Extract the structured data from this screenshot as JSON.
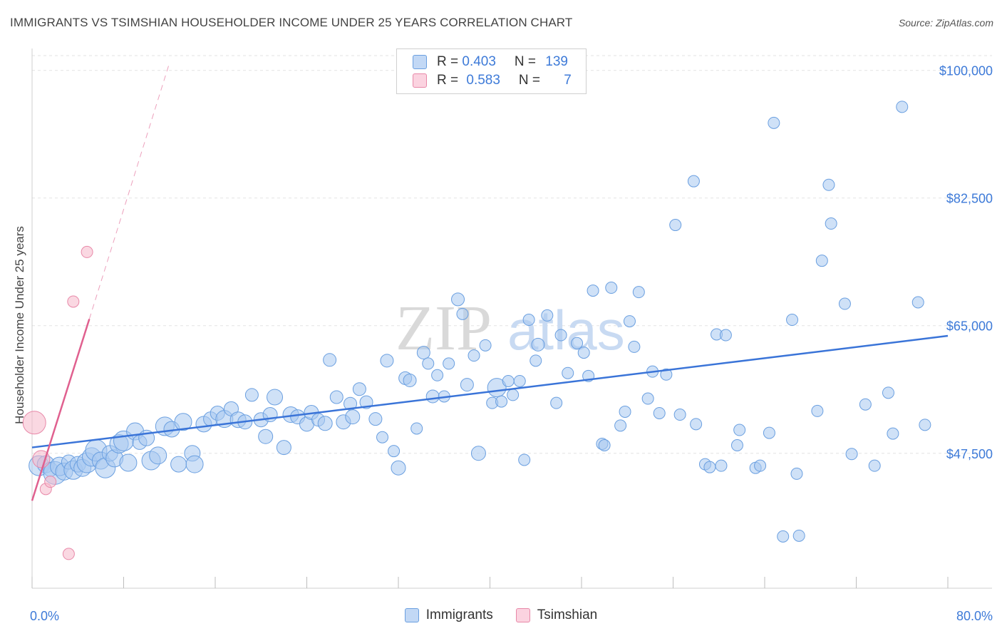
{
  "header": {
    "title": "IMMIGRANTS VS TSIMSHIAN HOUSEHOLDER INCOME UNDER 25 YEARS CORRELATION CHART",
    "source": "Source: ZipAtlas.com"
  },
  "watermark": {
    "zip": "ZIP",
    "atlas": "atlas"
  },
  "legend_top": {
    "rows": [
      {
        "r_label": "R = ",
        "r_value": "0.403",
        "n_label": "N = ",
        "n_value": "139",
        "color": "#a8c8f0"
      },
      {
        "r_label": "R = ",
        "r_value": "0.583",
        "n_label": "N = ",
        "n_value": "7",
        "color": "#f5b8cb"
      }
    ]
  },
  "legend_bottom": {
    "items": [
      {
        "label": "Immigrants",
        "color": "#a8c8f0"
      },
      {
        "label": "Tsimshian",
        "color": "#f5b8cb"
      }
    ]
  },
  "chart_data": {
    "type": "scatter",
    "ylabel": "Householder Income Under 25 years",
    "xlim": [
      0,
      80
    ],
    "ylim": [
      29000,
      103000
    ],
    "x_tick_labels": [
      {
        "value": 0,
        "label": "0.0%"
      },
      {
        "value": 80,
        "label": "80.0%"
      }
    ],
    "y_ticks": [
      {
        "value": 47500,
        "label": "$47,500"
      },
      {
        "value": 65000,
        "label": "$65,000"
      },
      {
        "value": 82500,
        "label": "$82,500"
      },
      {
        "value": 100000,
        "label": "$100,000"
      }
    ],
    "grid": true,
    "series": [
      {
        "name": "Immigrants",
        "color": "#a8c8f0",
        "stroke": "#6a9fe0",
        "trend": {
          "x0": 0,
          "y0": 48300,
          "x1": 80,
          "y1": 63600,
          "color": "#3a74d8"
        },
        "points": [
          [
            0.6,
            45800,
            14
          ],
          [
            1.2,
            46000,
            12
          ],
          [
            1.6,
            45300,
            10
          ],
          [
            2.0,
            44800,
            16
          ],
          [
            2.4,
            45700,
            13
          ],
          [
            2.8,
            45000,
            12
          ],
          [
            3.2,
            46300,
            10
          ],
          [
            3.6,
            45200,
            13
          ],
          [
            4.0,
            46000,
            11
          ],
          [
            4.4,
            45500,
            12
          ],
          [
            4.8,
            46200,
            14
          ],
          [
            5.2,
            47000,
            13
          ],
          [
            5.6,
            47900,
            15
          ],
          [
            6.0,
            46500,
            12
          ],
          [
            6.4,
            45500,
            14
          ],
          [
            6.8,
            47500,
            11
          ],
          [
            7.2,
            46800,
            12
          ],
          [
            7.6,
            48800,
            13
          ],
          [
            8.0,
            49200,
            14
          ],
          [
            8.4,
            46200,
            12
          ],
          [
            9.0,
            50500,
            12
          ],
          [
            9.4,
            49000,
            10
          ],
          [
            10.0,
            49600,
            11
          ],
          [
            10.4,
            46500,
            13
          ],
          [
            11.0,
            47200,
            12
          ],
          [
            11.6,
            51200,
            13
          ],
          [
            12.2,
            50800,
            11
          ],
          [
            12.8,
            46000,
            11
          ],
          [
            13.2,
            51800,
            12
          ],
          [
            14.0,
            47500,
            11
          ],
          [
            14.2,
            46000,
            12
          ],
          [
            15.0,
            51500,
            11
          ],
          [
            15.6,
            52200,
            10
          ],
          [
            16.2,
            53000,
            10
          ],
          [
            16.8,
            52200,
            12
          ],
          [
            17.4,
            53600,
            10
          ],
          [
            18.0,
            52100,
            11
          ],
          [
            18.6,
            51800,
            10
          ],
          [
            19.2,
            55500,
            9
          ],
          [
            20.0,
            52100,
            10
          ],
          [
            20.4,
            49800,
            10
          ],
          [
            20.8,
            52800,
            10
          ],
          [
            21.2,
            55200,
            11
          ],
          [
            22.0,
            48300,
            10
          ],
          [
            22.6,
            52800,
            11
          ],
          [
            23.2,
            52500,
            10
          ],
          [
            24.0,
            51500,
            10
          ],
          [
            24.4,
            53100,
            10
          ],
          [
            25.0,
            52100,
            9
          ],
          [
            25.6,
            51600,
            10
          ],
          [
            26.0,
            60300,
            9
          ],
          [
            26.6,
            55200,
            9
          ],
          [
            27.2,
            51800,
            10
          ],
          [
            27.8,
            54300,
            9
          ],
          [
            28.0,
            52500,
            10
          ],
          [
            28.6,
            56300,
            9
          ],
          [
            29.2,
            54500,
            9
          ],
          [
            30.0,
            52200,
            9
          ],
          [
            30.6,
            49700,
            8
          ],
          [
            31.0,
            60200,
            9
          ],
          [
            31.6,
            47800,
            8
          ],
          [
            32.0,
            45500,
            10
          ],
          [
            32.6,
            57800,
            9
          ],
          [
            33.0,
            57500,
            9
          ],
          [
            33.6,
            50900,
            8
          ],
          [
            34.2,
            61300,
            9
          ],
          [
            34.6,
            59800,
            8
          ],
          [
            35.0,
            55300,
            9
          ],
          [
            35.4,
            58200,
            8
          ],
          [
            36.0,
            55300,
            8
          ],
          [
            36.4,
            59800,
            8
          ],
          [
            37.2,
            68600,
            9
          ],
          [
            37.6,
            66600,
            8
          ],
          [
            38.0,
            56900,
            9
          ],
          [
            38.6,
            60900,
            8
          ],
          [
            39.0,
            47500,
            10
          ],
          [
            39.6,
            62300,
            8
          ],
          [
            40.2,
            54400,
            8
          ],
          [
            40.6,
            56500,
            13
          ],
          [
            41.0,
            54600,
            8
          ],
          [
            41.6,
            57400,
            8
          ],
          [
            42.0,
            55500,
            8
          ],
          [
            42.6,
            57400,
            8
          ],
          [
            43.0,
            46600,
            8
          ],
          [
            43.4,
            65800,
            8
          ],
          [
            44.0,
            60200,
            8
          ],
          [
            44.2,
            62400,
            9
          ],
          [
            45.0,
            66400,
            8
          ],
          [
            45.8,
            54400,
            8
          ],
          [
            46.2,
            63700,
            8
          ],
          [
            46.8,
            58500,
            8
          ],
          [
            47.6,
            62600,
            8
          ],
          [
            48.2,
            61300,
            8
          ],
          [
            48.6,
            58100,
            8
          ],
          [
            49.0,
            69800,
            8
          ],
          [
            49.8,
            48800,
            8
          ],
          [
            50.0,
            48600,
            8
          ],
          [
            50.6,
            70200,
            8
          ],
          [
            51.4,
            51300,
            8
          ],
          [
            51.8,
            53200,
            8
          ],
          [
            52.2,
            65600,
            8
          ],
          [
            52.6,
            62100,
            8
          ],
          [
            53.0,
            69600,
            8
          ],
          [
            53.8,
            55000,
            8
          ],
          [
            54.2,
            58700,
            8
          ],
          [
            54.8,
            53000,
            8
          ],
          [
            55.4,
            58300,
            8
          ],
          [
            56.2,
            78800,
            8
          ],
          [
            56.6,
            52800,
            8
          ],
          [
            57.8,
            84800,
            8
          ],
          [
            58.0,
            51500,
            8
          ],
          [
            58.8,
            46000,
            8
          ],
          [
            59.2,
            45600,
            8
          ],
          [
            59.8,
            63800,
            8
          ],
          [
            60.2,
            45800,
            8
          ],
          [
            60.6,
            63700,
            8
          ],
          [
            61.6,
            48600,
            8
          ],
          [
            61.8,
            50700,
            8
          ],
          [
            63.2,
            45500,
            8
          ],
          [
            63.6,
            45800,
            8
          ],
          [
            64.4,
            50300,
            8
          ],
          [
            64.8,
            92800,
            8
          ],
          [
            65.6,
            36100,
            8
          ],
          [
            66.4,
            65800,
            8
          ],
          [
            66.8,
            44700,
            8
          ],
          [
            67.0,
            36200,
            8
          ],
          [
            68.6,
            53300,
            8
          ],
          [
            69.0,
            73900,
            8
          ],
          [
            69.6,
            84300,
            8
          ],
          [
            69.8,
            79000,
            8
          ],
          [
            71.0,
            68000,
            8
          ],
          [
            71.6,
            47400,
            8
          ],
          [
            72.8,
            54200,
            8
          ],
          [
            73.6,
            45800,
            8
          ],
          [
            74.8,
            55800,
            8
          ],
          [
            75.2,
            50200,
            8
          ],
          [
            76.0,
            95000,
            8
          ],
          [
            77.4,
            68200,
            8
          ],
          [
            78.0,
            51400,
            8
          ]
        ]
      },
      {
        "name": "Tsimshian",
        "color": "#f5b8cb",
        "stroke": "#e888a8",
        "trend": {
          "x0": 0,
          "y0": 41000,
          "x1": 5.0,
          "y1": 65900,
          "color": "#e0608f",
          "dash_to": {
            "x": 12.0,
            "y": 101000
          }
        },
        "points": [
          [
            0.2,
            51700,
            16
          ],
          [
            0.8,
            46700,
            12
          ],
          [
            1.2,
            42600,
            8
          ],
          [
            1.6,
            43600,
            8
          ],
          [
            3.2,
            33700,
            8
          ],
          [
            3.6,
            68300,
            8
          ],
          [
            4.8,
            75100,
            8
          ]
        ]
      }
    ]
  }
}
